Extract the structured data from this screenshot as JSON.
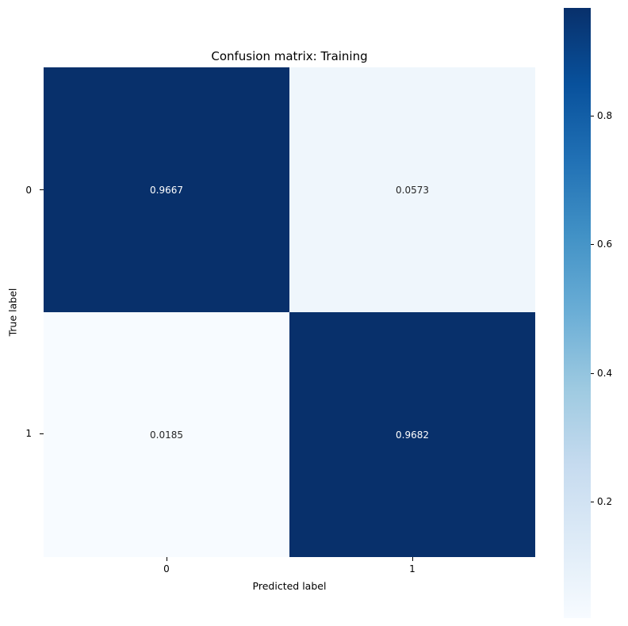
{
  "chart_data": {
    "type": "heatmap",
    "title": "Confusion matrix: Training",
    "xlabel": "Predicted label",
    "ylabel": "True label",
    "x_tick_labels": [
      "0",
      "1"
    ],
    "y_tick_labels": [
      "0",
      "1"
    ],
    "matrix": [
      [
        0.9667,
        0.0573
      ],
      [
        0.0185,
        0.9682
      ]
    ],
    "cell_labels": [
      [
        "0.9667",
        "0.0573"
      ],
      [
        "0.0185",
        "0.9682"
      ]
    ],
    "cell_colors": [
      [
        "#08306b",
        "#eff6fc"
      ],
      [
        "#f7fbff",
        "#08306b"
      ]
    ],
    "cell_text_colors": [
      [
        "#ffffff",
        "#262626"
      ],
      [
        "#262626",
        "#ffffff"
      ]
    ],
    "colormap": "Blues",
    "grid": false,
    "legend_position": "right-colorbar",
    "colorbar": {
      "vmin": 0.0185,
      "vmax": 0.9682,
      "ticks": [
        {
          "label": "0.8"
        },
        {
          "label": "0.6"
        },
        {
          "label": "0.4"
        },
        {
          "label": "0.2"
        }
      ],
      "gradient_stops": [
        "#08306b",
        "#08519c",
        "#2171b5",
        "#4292c6",
        "#6baed6",
        "#9ecae1",
        "#c6dbef",
        "#deebf7",
        "#f7fbff"
      ]
    }
  }
}
